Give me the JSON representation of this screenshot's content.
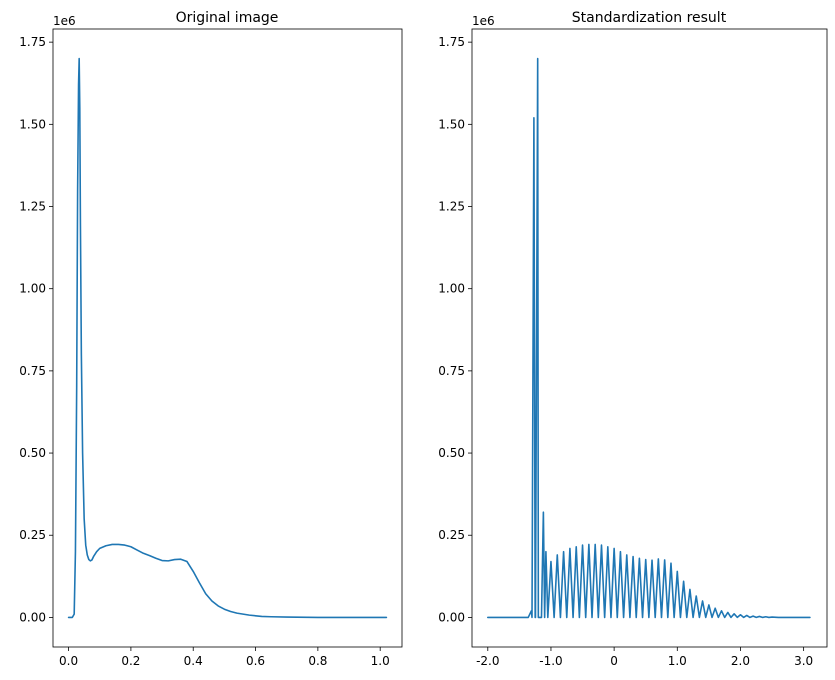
{
  "chart_data": [
    {
      "type": "line",
      "title": "Original image",
      "xlabel": "",
      "ylabel": "",
      "y_offset_label": "1e6",
      "xlim": [
        -0.05,
        1.07
      ],
      "ylim": [
        -0.09,
        1.79
      ],
      "x_ticks": [
        0,
        0.2,
        0.4,
        0.6,
        0.8,
        1.0
      ],
      "x_tick_labels": [
        "0.0",
        "0.2",
        "0.4",
        "0.6",
        "0.8",
        "1.0"
      ],
      "y_ticks": [
        0,
        0.25,
        0.5,
        0.75,
        1.0,
        1.25,
        1.5,
        1.75
      ],
      "y_tick_labels": [
        "0.00",
        "0.25",
        "0.50",
        "0.75",
        "1.00",
        "1.25",
        "1.50",
        "1.75"
      ],
      "color": "#1f77b4",
      "series": [
        {
          "x": [
            0.0,
            0.012,
            0.018,
            0.022,
            0.026,
            0.029,
            0.032,
            0.034,
            0.036,
            0.038,
            0.041,
            0.045,
            0.05,
            0.055,
            0.06,
            0.065,
            0.07,
            0.075,
            0.08,
            0.09,
            0.1,
            0.12,
            0.14,
            0.16,
            0.18,
            0.2,
            0.22,
            0.24,
            0.26,
            0.28,
            0.3,
            0.32,
            0.34,
            0.36,
            0.38,
            0.4,
            0.42,
            0.44,
            0.46,
            0.48,
            0.5,
            0.52,
            0.54,
            0.56,
            0.58,
            0.6,
            0.62,
            0.65,
            0.7,
            0.8,
            0.9,
            1.02
          ],
          "y": [
            0.0,
            0.0,
            0.01,
            0.2,
            0.7,
            1.3,
            1.62,
            1.7,
            1.55,
            1.2,
            0.8,
            0.5,
            0.3,
            0.22,
            0.19,
            0.176,
            0.172,
            0.175,
            0.185,
            0.2,
            0.21,
            0.218,
            0.222,
            0.222,
            0.22,
            0.215,
            0.205,
            0.195,
            0.188,
            0.18,
            0.173,
            0.172,
            0.176,
            0.177,
            0.17,
            0.14,
            0.105,
            0.072,
            0.05,
            0.035,
            0.025,
            0.018,
            0.013,
            0.01,
            0.007,
            0.005,
            0.003,
            0.002,
            0.001,
            0.0,
            0.0,
            0.0
          ]
        }
      ]
    },
    {
      "type": "line",
      "title": "Standardization result",
      "xlabel": "",
      "ylabel": "",
      "y_offset_label": "1e6",
      "xlim": [
        -2.25,
        3.37
      ],
      "ylim": [
        -0.09,
        1.79
      ],
      "x_ticks": [
        -2,
        -1,
        0,
        1,
        2,
        3
      ],
      "x_tick_labels": [
        "-2.0",
        "-1.0",
        "0",
        "1.0",
        "2.0",
        "3.0"
      ],
      "y_ticks": [
        0,
        0.25,
        0.5,
        0.75,
        1.0,
        1.25,
        1.5,
        1.75
      ],
      "y_tick_labels": [
        "0.00",
        "0.25",
        "0.50",
        "0.75",
        "1.00",
        "1.25",
        "1.50",
        "1.75"
      ],
      "color": "#1f77b4",
      "series": [
        {
          "x": [
            -2.0,
            -1.36,
            -1.31,
            -1.3,
            -1.27,
            -1.25,
            -1.245,
            -1.21,
            -1.2,
            -1.15,
            -1.12,
            -1.1,
            -1.08,
            -1.05,
            -1.0,
            -0.95,
            -0.9,
            -0.85,
            -0.8,
            -0.75,
            -0.7,
            -0.65,
            -0.6,
            -0.55,
            -0.5,
            -0.45,
            -0.4,
            -0.35,
            -0.3,
            -0.25,
            -0.2,
            -0.15,
            -0.1,
            -0.05,
            0.0,
            0.05,
            0.1,
            0.15,
            0.2,
            0.25,
            0.3,
            0.35,
            0.4,
            0.45,
            0.5,
            0.55,
            0.6,
            0.65,
            0.7,
            0.75,
            0.8,
            0.85,
            0.9,
            0.95,
            1.0,
            1.05,
            1.1,
            1.15,
            1.2,
            1.25,
            1.3,
            1.35,
            1.4,
            1.45,
            1.5,
            1.55,
            1.6,
            1.65,
            1.7,
            1.75,
            1.8,
            1.85,
            1.9,
            1.95,
            2.0,
            2.05,
            2.1,
            2.15,
            2.2,
            2.25,
            2.3,
            2.35,
            2.4,
            2.45,
            2.5,
            2.6,
            2.8,
            3.1
          ],
          "y": [
            0.0,
            0.0,
            0.02,
            0.0,
            1.52,
            0.0,
            0.0,
            1.7,
            0.0,
            0.0,
            0.32,
            0.0,
            0.2,
            0.0,
            0.17,
            0.0,
            0.19,
            0.0,
            0.2,
            0.0,
            0.21,
            0.0,
            0.215,
            0.0,
            0.22,
            0.0,
            0.222,
            0.0,
            0.222,
            0.0,
            0.22,
            0.0,
            0.215,
            0.0,
            0.21,
            0.0,
            0.2,
            0.0,
            0.19,
            0.0,
            0.185,
            0.0,
            0.18,
            0.0,
            0.176,
            0.0,
            0.174,
            0.0,
            0.178,
            0.0,
            0.175,
            0.0,
            0.165,
            0.0,
            0.14,
            0.0,
            0.11,
            0.0,
            0.085,
            0.0,
            0.065,
            0.0,
            0.05,
            0.0,
            0.038,
            0.0,
            0.028,
            0.0,
            0.02,
            0.0,
            0.015,
            0.0,
            0.011,
            0.0,
            0.008,
            0.0,
            0.006,
            0.0,
            0.004,
            0.0,
            0.003,
            0.0,
            0.002,
            0.0,
            0.001,
            0.0,
            0.0,
            0.0
          ]
        }
      ]
    }
  ]
}
